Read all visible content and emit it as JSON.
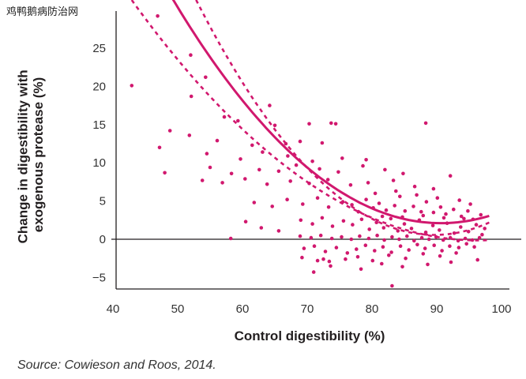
{
  "watermark": "鸡鸭鹅病防治网",
  "source": "Source: Cowieson and Roos, 2014.",
  "colors": {
    "accent": "#d1186e",
    "axis": "#231f20"
  },
  "chart_data": {
    "type": "scatter",
    "xlabel": "Control digestibility (%)",
    "ylabel_lines": [
      "Change in digestibility with",
      "exogenous protease (%)"
    ],
    "xlim": [
      40,
      100
    ],
    "ylim": [
      -5,
      30
    ],
    "xticks": [
      40,
      50,
      60,
      70,
      80,
      90,
      100
    ],
    "yticks": [
      -5,
      0,
      5,
      10,
      15,
      20,
      25
    ],
    "grid": false,
    "legend": "none",
    "reference_line_y": 0,
    "series": [
      {
        "kind": "points",
        "values": [
          [
            46.9,
            29.2
          ],
          [
            52.0,
            24.1
          ],
          [
            54.3,
            21.2
          ],
          [
            42.9,
            20.1
          ],
          [
            52.1,
            18.7
          ],
          [
            64.2,
            17.5
          ],
          [
            57.2,
            16.0
          ],
          [
            59.3,
            15.5
          ],
          [
            65.0,
            14.9
          ],
          [
            70.3,
            15.1
          ],
          [
            73.7,
            15.2
          ],
          [
            74.4,
            15.1
          ],
          [
            88.3,
            15.2
          ],
          [
            48.8,
            14.2
          ],
          [
            51.8,
            13.6
          ],
          [
            56.1,
            12.9
          ],
          [
            61.5,
            12.3
          ],
          [
            66.7,
            12.5
          ],
          [
            68.9,
            12.8
          ],
          [
            72.3,
            12.6
          ],
          [
            47.2,
            12.0
          ],
          [
            54.5,
            11.2
          ],
          [
            59.7,
            10.5
          ],
          [
            63.1,
            11.4
          ],
          [
            67.0,
            10.9
          ],
          [
            70.8,
            10.2
          ],
          [
            75.4,
            10.6
          ],
          [
            79.1,
            10.4
          ],
          [
            55.0,
            9.4
          ],
          [
            58.3,
            8.6
          ],
          [
            62.6,
            9.1
          ],
          [
            65.6,
            8.9
          ],
          [
            68.3,
            9.7
          ],
          [
            71.9,
            9.2
          ],
          [
            74.8,
            8.8
          ],
          [
            78.6,
            9.6
          ],
          [
            82.0,
            9.1
          ],
          [
            84.8,
            8.6
          ],
          [
            92.1,
            8.3
          ],
          [
            48.0,
            8.7
          ],
          [
            53.8,
            7.7
          ],
          [
            56.9,
            7.4
          ],
          [
            60.4,
            7.9
          ],
          [
            63.8,
            7.2
          ],
          [
            67.4,
            7.6
          ],
          [
            70.3,
            7.3
          ],
          [
            73.2,
            7.8
          ],
          [
            76.7,
            7.1
          ],
          [
            79.4,
            7.4
          ],
          [
            83.3,
            7.7
          ],
          [
            86.6,
            6.9
          ],
          [
            89.5,
            6.6
          ],
          [
            61.8,
            4.8
          ],
          [
            64.6,
            4.3
          ],
          [
            66.9,
            5.2
          ],
          [
            69.3,
            4.6
          ],
          [
            71.6,
            5.4
          ],
          [
            73.3,
            4.2
          ],
          [
            75.5,
            4.9
          ],
          [
            76.9,
            4.5
          ],
          [
            77.9,
            3.6
          ],
          [
            79.1,
            5.2
          ],
          [
            80.2,
            4.1
          ],
          [
            81.1,
            4.7
          ],
          [
            82.2,
            3.8
          ],
          [
            83.5,
            4.4
          ],
          [
            84.3,
            5.6
          ],
          [
            85.1,
            3.7
          ],
          [
            86.4,
            4.3
          ],
          [
            87.6,
            3.6
          ],
          [
            88.4,
            4.9
          ],
          [
            89.5,
            3.5
          ],
          [
            90.6,
            4.2
          ],
          [
            91.4,
            3.3
          ],
          [
            92.6,
            3.9
          ],
          [
            93.8,
            3.0
          ],
          [
            94.8,
            3.7
          ],
          [
            95.6,
            2.6
          ],
          [
            69.0,
            2.5
          ],
          [
            70.8,
            2.0
          ],
          [
            72.3,
            2.8
          ],
          [
            73.9,
            1.7
          ],
          [
            75.6,
            2.4
          ],
          [
            77.0,
            1.9
          ],
          [
            78.4,
            2.6
          ],
          [
            79.6,
            1.3
          ],
          [
            80.7,
            2.2
          ],
          [
            81.8,
            1.5
          ],
          [
            82.9,
            2.7
          ],
          [
            84.0,
            1.1
          ],
          [
            85.0,
            2.0
          ],
          [
            86.1,
            1.4
          ],
          [
            87.3,
            2.5
          ],
          [
            88.3,
            0.9
          ],
          [
            89.4,
            1.8
          ],
          [
            90.4,
            1.2
          ],
          [
            91.6,
            2.1
          ],
          [
            92.7,
            0.8
          ],
          [
            93.7,
            1.6
          ],
          [
            94.9,
            1.0
          ],
          [
            96.1,
            1.9
          ],
          [
            97.0,
            0.6
          ],
          [
            60.5,
            2.3
          ],
          [
            62.9,
            1.5
          ],
          [
            65.6,
            1.1
          ],
          [
            58.2,
            0.1
          ],
          [
            68.9,
            0.4
          ],
          [
            70.6,
            0.2
          ],
          [
            72.1,
            0.5
          ],
          [
            73.8,
            0.1
          ],
          [
            75.3,
            0.3
          ],
          [
            76.8,
            0.0
          ],
          [
            78.1,
            0.4
          ],
          [
            79.5,
            0.1
          ],
          [
            80.8,
            0.5
          ],
          [
            81.9,
            -0.1
          ],
          [
            83.1,
            0.3
          ],
          [
            84.2,
            0.0
          ],
          [
            85.4,
            0.4
          ],
          [
            86.5,
            -0.2
          ],
          [
            87.7,
            0.2
          ],
          [
            88.8,
            0.0
          ],
          [
            89.9,
            0.3
          ],
          [
            91.0,
            -0.1
          ],
          [
            92.1,
            0.2
          ],
          [
            93.3,
            -0.2
          ],
          [
            94.4,
            0.1
          ],
          [
            95.5,
            -0.1
          ],
          [
            96.6,
            0.2
          ],
          [
            69.5,
            -1.2
          ],
          [
            71.1,
            -0.9
          ],
          [
            72.8,
            -1.6
          ],
          [
            74.5,
            -1.1
          ],
          [
            76.2,
            -1.8
          ],
          [
            77.6,
            -1.3
          ],
          [
            79.0,
            -0.8
          ],
          [
            80.4,
            -1.5
          ],
          [
            81.7,
            -1.0
          ],
          [
            83.0,
            -1.7
          ],
          [
            84.4,
            -0.9
          ],
          [
            85.7,
            -1.4
          ],
          [
            87.0,
            -0.7
          ],
          [
            88.2,
            -1.2
          ],
          [
            89.6,
            -0.8
          ],
          [
            90.8,
            -1.5
          ],
          [
            92.0,
            -0.9
          ],
          [
            93.4,
            -1.1
          ],
          [
            94.6,
            -0.6
          ],
          [
            95.8,
            -1.0
          ],
          [
            69.2,
            -2.4
          ],
          [
            71.6,
            -2.8
          ],
          [
            72.5,
            -2.6
          ],
          [
            73.4,
            -2.9
          ],
          [
            75.9,
            -2.6
          ],
          [
            77.8,
            -2.3
          ],
          [
            80.1,
            -2.8
          ],
          [
            82.6,
            -2.1
          ],
          [
            85.2,
            -2.5
          ],
          [
            87.9,
            -1.9
          ],
          [
            90.5,
            -2.2
          ],
          [
            93.0,
            -1.8
          ],
          [
            71.0,
            -4.3
          ],
          [
            73.6,
            -3.5
          ],
          [
            78.3,
            -3.9
          ],
          [
            81.5,
            -3.2
          ],
          [
            83.1,
            -6.1
          ],
          [
            84.7,
            -3.6
          ],
          [
            88.6,
            -3.3
          ],
          [
            92.2,
            -3.0
          ],
          [
            96.3,
            -2.7
          ],
          [
            80.5,
            6.0
          ],
          [
            83.7,
            6.3
          ],
          [
            86.9,
            5.8
          ],
          [
            90.1,
            5.4
          ],
          [
            93.5,
            5.1
          ],
          [
            81.6,
            3.0
          ],
          [
            84.7,
            2.9
          ],
          [
            87.9,
            3.1
          ],
          [
            91.1,
            2.8
          ],
          [
            94.2,
            2.7
          ],
          [
            97.4,
            1.4
          ],
          [
            96.8,
            3.2
          ],
          [
            95.2,
            4.6
          ]
        ]
      },
      {
        "kind": "fit",
        "x": [
          42.9,
          98.1
        ],
        "coef": [
          142.6,
          -3.1,
          0.0171
        ]
      },
      {
        "kind": "upper-bound",
        "x": [
          42.9,
          98.1
        ],
        "coef": [
          183.0,
          -4.07,
          0.0227
        ]
      },
      {
        "kind": "lower-bound",
        "x": [
          42.9,
          98.1
        ],
        "coef": [
          102.0,
          -2.12,
          0.011
        ]
      }
    ]
  }
}
